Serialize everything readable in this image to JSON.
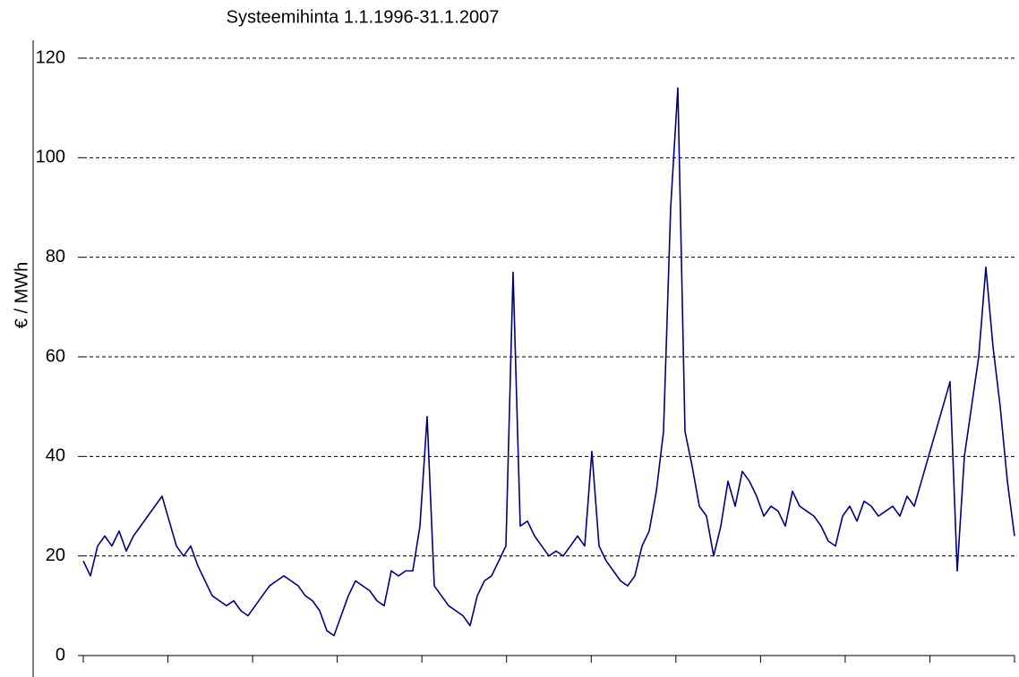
{
  "chart_data": {
    "type": "line",
    "title": "Systeemihinta 1.1.1996-31.1.2007",
    "y_label": "€ / MWh",
    "color": "#000080",
    "grid": true,
    "ylim": [
      0,
      120
    ],
    "yticks": [
      0,
      20,
      40,
      60,
      80,
      100,
      120
    ],
    "values": [
      19,
      16,
      22,
      24,
      22,
      25,
      21,
      24,
      26,
      28,
      30,
      32,
      27,
      22,
      20,
      22,
      18,
      15,
      12,
      11,
      10,
      11,
      9,
      8,
      10,
      12,
      14,
      15,
      16,
      15,
      14,
      12,
      11,
      9,
      5,
      4,
      8,
      12,
      15,
      14,
      13,
      11,
      10,
      17,
      16,
      17,
      17,
      26,
      48,
      14,
      12,
      10,
      9,
      8,
      6,
      12,
      15,
      16,
      19,
      22,
      77,
      26,
      27,
      24,
      22,
      20,
      21,
      20,
      22,
      24,
      22,
      41,
      22,
      19,
      17,
      15,
      14,
      16,
      22,
      25,
      33,
      45,
      90,
      114,
      45,
      38,
      30,
      28,
      20,
      26,
      35,
      30,
      37,
      35,
      32,
      28,
      30,
      29,
      26,
      33,
      30,
      29,
      28,
      26,
      23,
      22,
      28,
      30,
      27,
      31,
      30,
      28,
      29,
      30,
      28,
      32,
      30,
      35,
      40,
      45,
      50,
      55,
      17,
      40,
      50,
      60,
      78,
      62,
      50,
      35,
      24
    ]
  }
}
